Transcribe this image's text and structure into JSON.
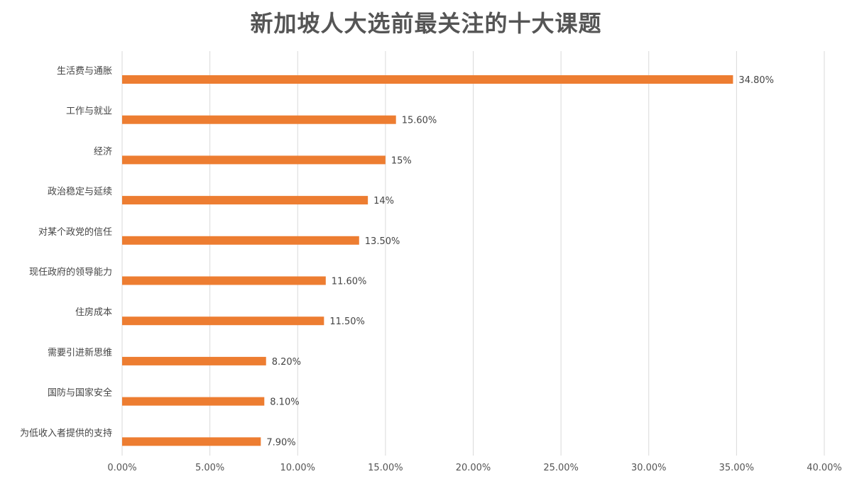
{
  "chart_data": {
    "type": "bar",
    "orientation": "horizontal",
    "title": "新加坡人大选前最关注的十大课题",
    "xlabel": "",
    "ylabel": "",
    "categories": [
      "生活费与通胀",
      "工作与就业",
      "经济",
      "政治稳定与延续",
      "对某个政党的信任",
      "现任政府的领导能力",
      "住房成本",
      "需要引进新思维",
      "国防与国家安全",
      "为低收入者提供的支持"
    ],
    "values": [
      34.8,
      15.6,
      15,
      14,
      13.5,
      11.6,
      11.5,
      8.2,
      8.1,
      7.9
    ],
    "data_labels": [
      "34.80%",
      "15.60%",
      "15%",
      "14%",
      "13.50%",
      "11.60%",
      "11.50%",
      "8.20%",
      "8.10%",
      "7.90%"
    ],
    "xlim": [
      0,
      40
    ],
    "x_ticks": [
      0,
      5,
      10,
      15,
      20,
      25,
      30,
      35,
      40
    ],
    "x_tick_labels": [
      "0.00%",
      "5.00%",
      "10.00%",
      "15.00%",
      "20.00%",
      "25.00%",
      "30.00%",
      "35.00%",
      "40.00%"
    ],
    "grid": true,
    "legend": "none",
    "colors": {
      "bar": "#ED7D31",
      "grid": "#D9D9D9",
      "title": "#555555"
    }
  }
}
